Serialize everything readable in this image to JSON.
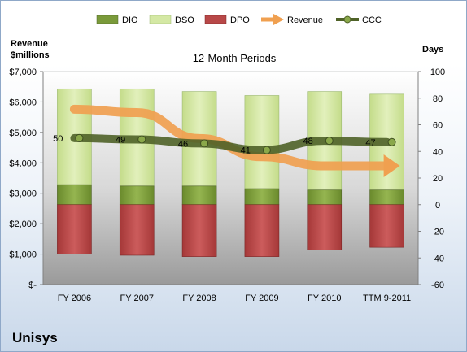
{
  "chart_data": {
    "type": "bar",
    "title": "12-Month Periods",
    "company": "Unisys",
    "left_axis_title_lines": [
      "Revenue",
      "$millions"
    ],
    "right_axis_title": "Days",
    "categories": [
      "FY 2006",
      "FY 2007",
      "FY 2008",
      "FY 2009",
      "FY 2010",
      "TTM 9-2011"
    ],
    "left_axis": {
      "ylim": [
        0,
        7000
      ],
      "ticks": [
        "$-",
        "$1,000",
        "$2,000",
        "$3,000",
        "$4,000",
        "$5,000",
        "$6,000",
        "$7,000"
      ]
    },
    "right_axis": {
      "ylim": [
        -60,
        100
      ],
      "ticks": [
        "-60",
        "-40",
        "-20",
        "0",
        "20",
        "40",
        "60",
        "80",
        "100"
      ],
      "tick_values": [
        -60,
        -40,
        -20,
        0,
        20,
        40,
        60,
        80,
        100
      ]
    },
    "legend": {
      "placement": "top",
      "items": [
        {
          "name": "DIO",
          "kind": "bar",
          "color": "#7a9a3a"
        },
        {
          "name": "DSO",
          "kind": "bar",
          "color": "#d4e8a4"
        },
        {
          "name": "DPO",
          "kind": "bar",
          "color": "#b84848"
        },
        {
          "name": "Revenue",
          "kind": "arrow",
          "color": "#f0a050"
        },
        {
          "name": "CCC",
          "kind": "line-marker",
          "color": "#4f6228"
        }
      ]
    },
    "series": [
      {
        "name": "DIO",
        "axis": "days",
        "values": [
          15,
          14,
          14,
          12,
          11,
          11
        ],
        "color": "#7a9a3a"
      },
      {
        "name": "DSO",
        "axis": "days",
        "values": [
          72,
          73,
          71,
          70,
          74,
          72
        ],
        "color": "#d4e8a4"
      },
      {
        "name": "DPO",
        "axis": "days",
        "values": [
          -37,
          -38,
          -39,
          -39,
          -34,
          -32
        ],
        "color": "#b84848"
      },
      {
        "name": "CCC",
        "axis": "days",
        "values": [
          50,
          49,
          46,
          41,
          48,
          47
        ],
        "labels": [
          "50",
          "49",
          "46",
          "41",
          "48",
          "47"
        ],
        "color": "#4f6228"
      },
      {
        "name": "Revenue",
        "axis": "revenue",
        "values": [
          5760,
          5650,
          4800,
          4200,
          3900,
          3900
        ],
        "color": "#f0a050"
      }
    ],
    "grid": false
  }
}
